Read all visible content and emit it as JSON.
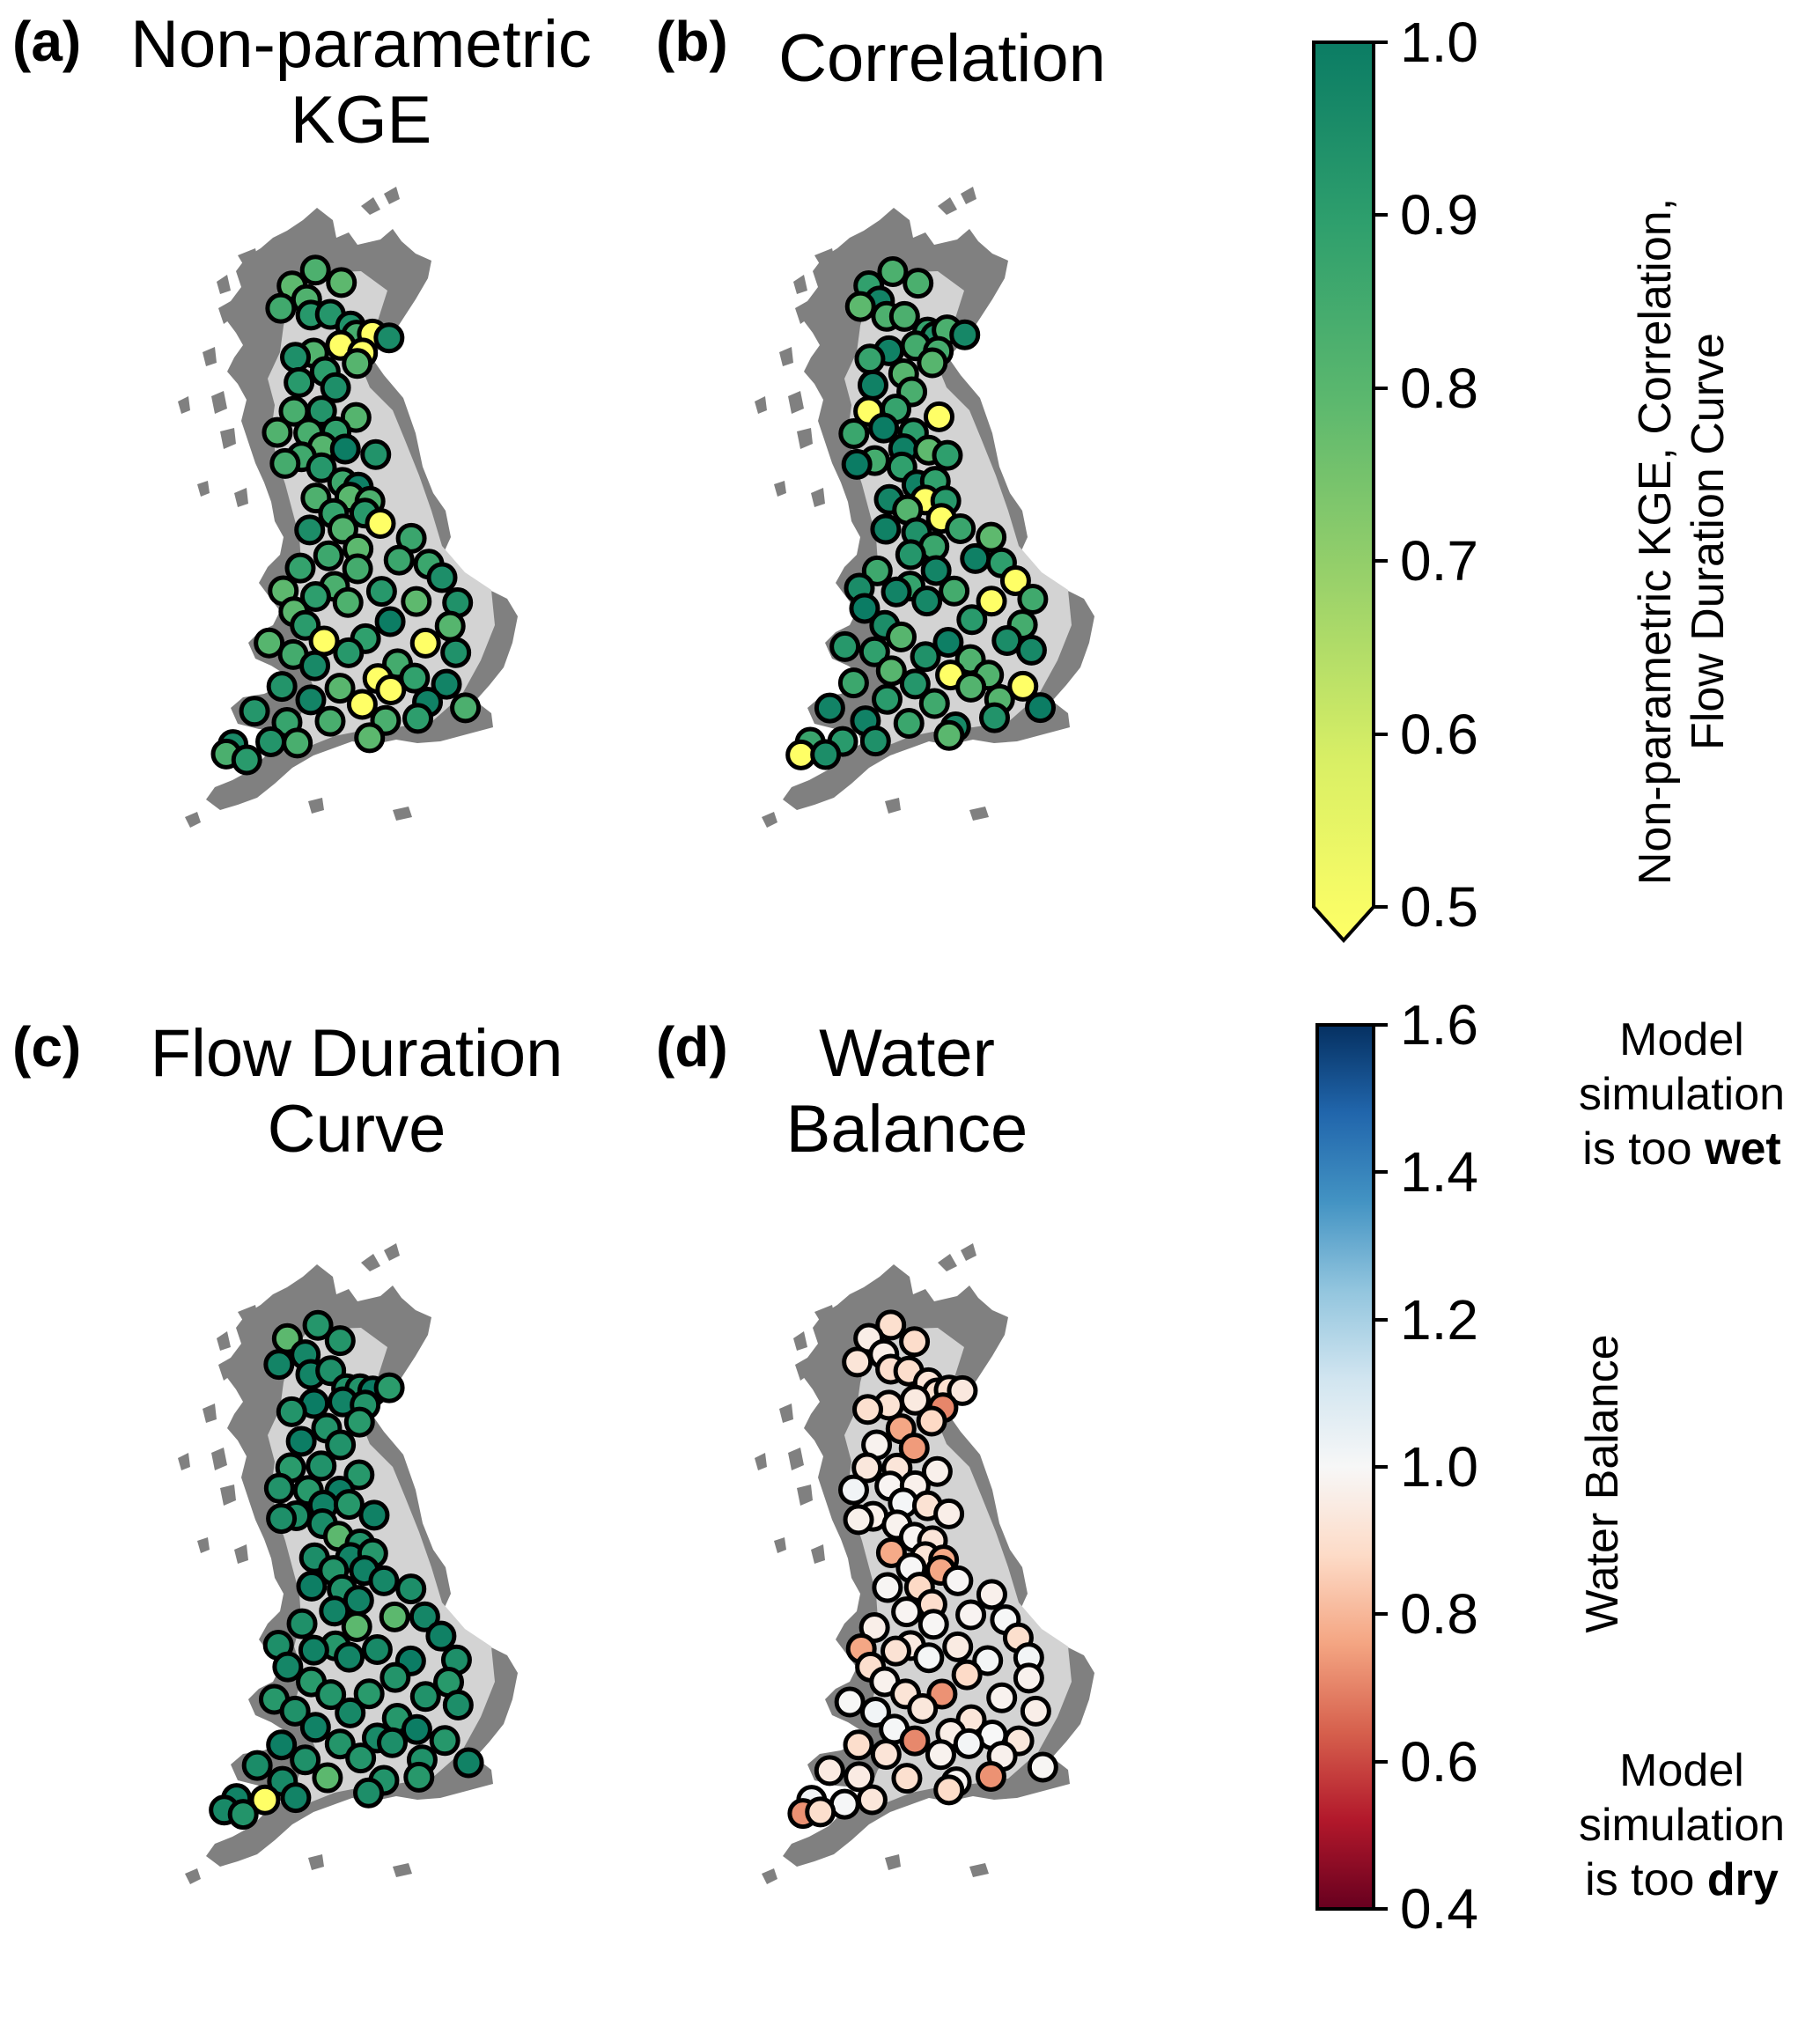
{
  "panels": [
    {
      "letter": "(a)",
      "title": [
        "Non-parametric",
        "KGE"
      ],
      "scheme": "green",
      "seed": 11
    },
    {
      "letter": "(b)",
      "title": [
        "Correlation"
      ],
      "scheme": "green",
      "seed": 23
    },
    {
      "letter": "(c)",
      "title": [
        "Flow Duration",
        "Curve"
      ],
      "scheme": "green-dark",
      "seed": 37
    },
    {
      "letter": "(d)",
      "title": [
        "Water",
        "Balance"
      ],
      "scheme": "redblue",
      "seed": 53
    }
  ],
  "colorbar_top": {
    "label_line1": "Non-parametric KGE, Correlation,",
    "label_line2": "Flow Duration Curve",
    "ticks": [
      "1.0",
      "0.9",
      "0.8",
      "0.7",
      "0.6",
      "0.5"
    ],
    "range": [
      0.5,
      1.0
    ],
    "extend": "min",
    "colors": [
      "#ffff66",
      "#d9ef65",
      "#99d16a",
      "#5cb86e",
      "#2e9f6d",
      "#0b7c64"
    ]
  },
  "colorbar_bottom": {
    "label": "Water Balance",
    "ticks": [
      "1.6",
      "1.4",
      "1.2",
      "1.0",
      "0.8",
      "0.6",
      "0.4"
    ],
    "range": [
      0.4,
      1.6
    ],
    "colors": [
      "#053061",
      "#2166ac",
      "#4393c3",
      "#92c5de",
      "#d1e5f0",
      "#f7f7f7",
      "#fddbc7",
      "#f4a582",
      "#d6604d",
      "#b2182b",
      "#67001f"
    ],
    "wet_note": {
      "line1": "Model",
      "line2": "simulation",
      "line3_pre": "is too ",
      "line3_bold": "wet"
    },
    "dry_note": {
      "line1": "Model",
      "line2": "simulation",
      "line3_pre": "is too ",
      "line3_bold": "dry"
    }
  },
  "colors": {
    "land": "#808080",
    "catchment": "#d3d3d3",
    "marker_edge": "#000000"
  }
}
